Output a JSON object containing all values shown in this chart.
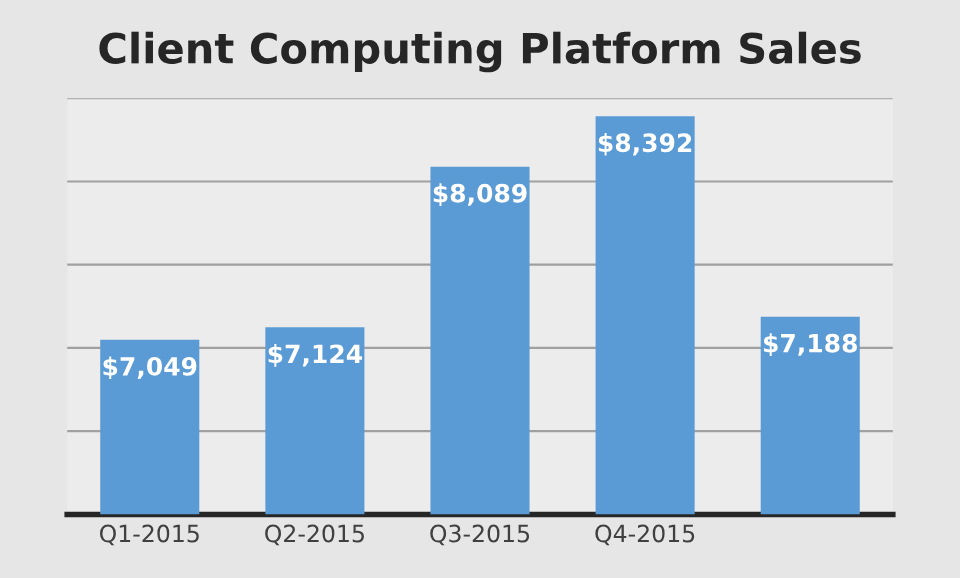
{
  "chart_data": {
    "type": "bar",
    "title": "Client Computing Platform Sales",
    "categories": [
      "Q1-2015",
      "Q2-2015",
      "Q3-2015",
      "Q4-2015",
      null
    ],
    "values": [
      7049,
      7124,
      8089,
      8392,
      7188
    ],
    "value_labels": [
      "$7,049",
      "$7,124",
      "$8,089",
      "$8,392",
      "$7,188"
    ],
    "color": "#5b9bd5",
    "ylim": [
      6000,
      8500
    ],
    "yticks": [
      {
        "value": 6000,
        "label": null
      },
      {
        "value": 6500,
        "label": null
      },
      {
        "value": 7000,
        "label": null
      },
      {
        "value": 7500,
        "label": null
      },
      {
        "value": 8000,
        "label": null
      },
      {
        "value": 8500,
        "label": null
      }
    ],
    "grid": "y",
    "tick_labels": "x"
  }
}
